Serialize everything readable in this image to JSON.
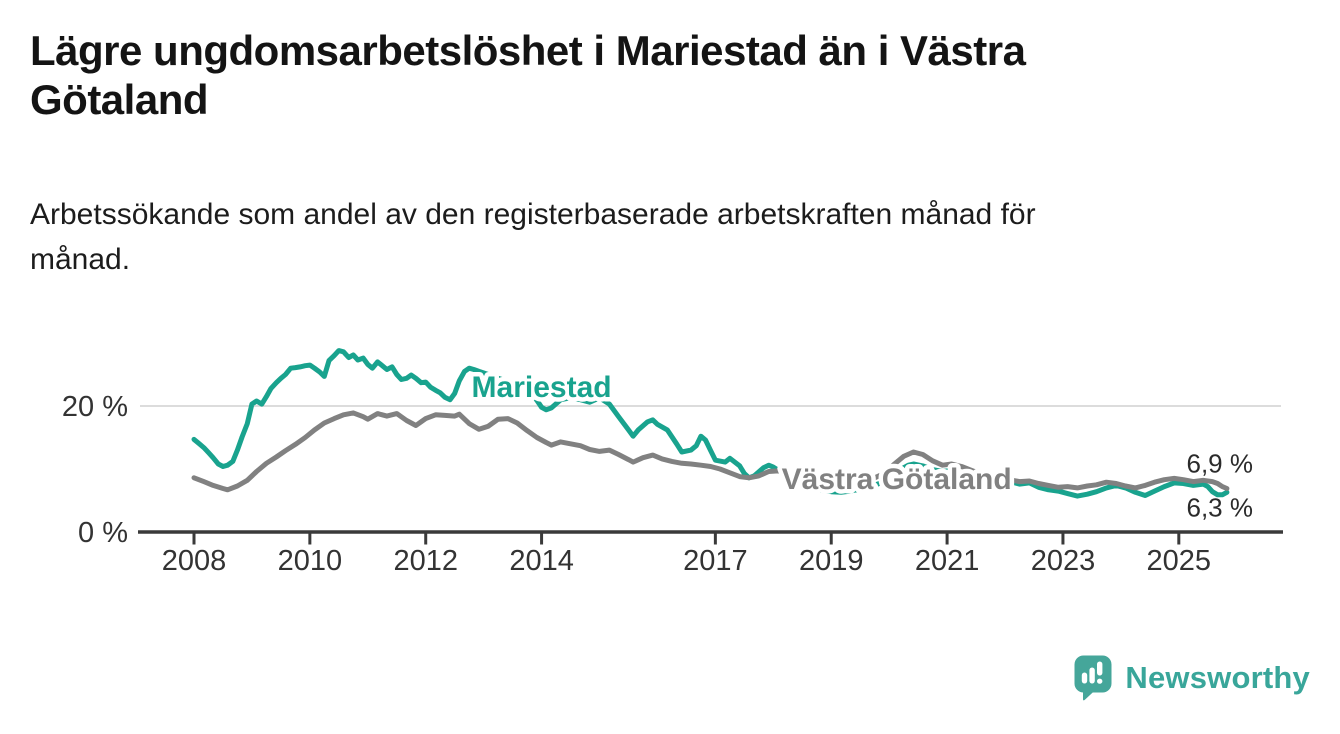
{
  "header": {
    "title_lines": [
      "Lägre ungdomsarbetslöshet i Mariestad än i Västra",
      "Götaland"
    ],
    "subtitle_lines": [
      "Arbetssökande som andel av den registerbaserade arbetskraften månad för",
      "månad."
    ]
  },
  "footer": {
    "brand": "Newsworthy",
    "brand_color": "#39a69a",
    "logo_icon": "speech-bubble-bar-chart-icon"
  },
  "colors": {
    "background": "#ffffff",
    "title_text": "#141414",
    "axis": "#3a3a3a",
    "tick_label": "#333333",
    "grid_line": "#dcdcdc",
    "mariestad_teal": "#19a38e",
    "vastra_gotaland_gray": "#818181",
    "end_label_text": "#2b2b2b"
  },
  "chart_data": {
    "type": "line",
    "title": "Lägre ungdomsarbetslöshet i Mariestad än i Västra Götaland",
    "subtitle": "Arbetssökande som andel av den registerbaserade arbetskraften månad för månad.",
    "x_unit": "year (monthly data)",
    "y_unit": "percent",
    "xlim": [
      2007.9,
      2026.1
    ],
    "ylim": [
      0,
      30.5
    ],
    "grid": "y-only",
    "grid_y_values": [
      20
    ],
    "legend_position": "inline-labels",
    "x_ticks": [
      {
        "value": 2008,
        "label": "2008"
      },
      {
        "value": 2010,
        "label": "2010"
      },
      {
        "value": 2012,
        "label": "2012"
      },
      {
        "value": 2014,
        "label": "2014"
      },
      {
        "value": 2017,
        "label": "2017"
      },
      {
        "value": 2019,
        "label": "2019"
      },
      {
        "value": 2021,
        "label": "2021"
      },
      {
        "value": 2023,
        "label": "2023"
      },
      {
        "value": 2025,
        "label": "2025"
      }
    ],
    "y_ticks": [
      {
        "value": 0,
        "label": "0 %"
      },
      {
        "value": 20,
        "label": "20 %"
      }
    ],
    "series": [
      {
        "name": "Mariestad",
        "color": "#19a38e",
        "final_value_label": "6,3 %",
        "inline_label": {
          "x": 2014.0,
          "y": 23.2
        },
        "points": [
          [
            2008.0,
            14.7
          ],
          [
            2008.08,
            14.1
          ],
          [
            2008.17,
            13.4
          ],
          [
            2008.25,
            12.6
          ],
          [
            2008.33,
            11.8
          ],
          [
            2008.42,
            10.8
          ],
          [
            2008.5,
            10.4
          ],
          [
            2008.58,
            10.6
          ],
          [
            2008.67,
            11.2
          ],
          [
            2008.75,
            13.0
          ],
          [
            2008.83,
            15.1
          ],
          [
            2008.92,
            17.2
          ],
          [
            2009.0,
            20.3
          ],
          [
            2009.08,
            20.8
          ],
          [
            2009.17,
            20.3
          ],
          [
            2009.25,
            21.5
          ],
          [
            2009.33,
            22.8
          ],
          [
            2009.42,
            23.7
          ],
          [
            2009.5,
            24.4
          ],
          [
            2009.58,
            25.0
          ],
          [
            2009.67,
            26.0
          ],
          [
            2009.75,
            26.1
          ],
          [
            2009.83,
            26.2
          ],
          [
            2009.92,
            26.4
          ],
          [
            2010.0,
            26.5
          ],
          [
            2010.08,
            26.0
          ],
          [
            2010.17,
            25.4
          ],
          [
            2010.25,
            24.7
          ],
          [
            2010.33,
            27.2
          ],
          [
            2010.42,
            28.0
          ],
          [
            2010.5,
            28.8
          ],
          [
            2010.58,
            28.6
          ],
          [
            2010.67,
            27.7
          ],
          [
            2010.75,
            28.1
          ],
          [
            2010.83,
            27.3
          ],
          [
            2010.92,
            27.6
          ],
          [
            2011.0,
            26.6
          ],
          [
            2011.08,
            26.0
          ],
          [
            2011.17,
            27.0
          ],
          [
            2011.25,
            26.4
          ],
          [
            2011.33,
            25.8
          ],
          [
            2011.42,
            26.2
          ],
          [
            2011.5,
            25.0
          ],
          [
            2011.58,
            24.2
          ],
          [
            2011.67,
            24.4
          ],
          [
            2011.75,
            24.9
          ],
          [
            2011.83,
            24.4
          ],
          [
            2011.92,
            23.7
          ],
          [
            2012.0,
            23.8
          ],
          [
            2012.08,
            23.0
          ],
          [
            2012.17,
            22.5
          ],
          [
            2012.25,
            22.1
          ],
          [
            2012.33,
            21.4
          ],
          [
            2012.42,
            21.0
          ],
          [
            2012.5,
            22.0
          ],
          [
            2012.58,
            24.0
          ],
          [
            2012.67,
            25.5
          ],
          [
            2012.75,
            26.0
          ],
          [
            2012.83,
            25.8
          ],
          [
            2012.92,
            25.5
          ],
          [
            2013.08,
            25.0
          ],
          [
            2013.25,
            24.4
          ],
          [
            2013.42,
            23.9
          ],
          [
            2013.58,
            23.4
          ],
          [
            2013.75,
            22.6
          ],
          [
            2013.92,
            20.9
          ],
          [
            2014.0,
            19.8
          ],
          [
            2014.08,
            19.4
          ],
          [
            2014.17,
            19.7
          ],
          [
            2014.33,
            21.0
          ],
          [
            2014.5,
            21.3
          ],
          [
            2014.67,
            21.0
          ],
          [
            2014.83,
            20.6
          ],
          [
            2015.0,
            21.3
          ],
          [
            2015.17,
            20.3
          ],
          [
            2015.33,
            18.3
          ],
          [
            2015.5,
            16.2
          ],
          [
            2015.58,
            15.2
          ],
          [
            2015.67,
            16.2
          ],
          [
            2015.83,
            17.5
          ],
          [
            2015.92,
            17.8
          ],
          [
            2016.0,
            17.1
          ],
          [
            2016.17,
            16.2
          ],
          [
            2016.33,
            14.0
          ],
          [
            2016.42,
            12.7
          ],
          [
            2016.58,
            13.0
          ],
          [
            2016.67,
            13.7
          ],
          [
            2016.75,
            15.2
          ],
          [
            2016.83,
            14.6
          ],
          [
            2016.92,
            12.9
          ],
          [
            2017.0,
            11.4
          ],
          [
            2017.17,
            11.1
          ],
          [
            2017.25,
            11.7
          ],
          [
            2017.42,
            10.5
          ],
          [
            2017.5,
            9.3
          ],
          [
            2017.58,
            8.6
          ],
          [
            2017.67,
            8.9
          ],
          [
            2017.83,
            10.2
          ],
          [
            2017.92,
            10.6
          ],
          [
            2018.0,
            10.3
          ],
          [
            2018.17,
            9.3
          ],
          [
            2018.33,
            8.3
          ],
          [
            2018.5,
            7.5
          ],
          [
            2018.67,
            6.9
          ],
          [
            2018.83,
            6.6
          ],
          [
            2019.0,
            6.4
          ],
          [
            2019.17,
            6.3
          ],
          [
            2019.33,
            6.5
          ],
          [
            2019.5,
            6.8
          ],
          [
            2019.67,
            7.2
          ],
          [
            2019.83,
            7.7
          ],
          [
            2020.0,
            8.5
          ],
          [
            2020.17,
            9.8
          ],
          [
            2020.33,
            10.6
          ],
          [
            2020.42,
            10.8
          ],
          [
            2020.58,
            10.5
          ],
          [
            2020.75,
            9.9
          ],
          [
            2020.92,
            9.6
          ],
          [
            2021.08,
            9.8
          ],
          [
            2021.25,
            9.4
          ],
          [
            2021.42,
            9.2
          ],
          [
            2021.58,
            9.0
          ],
          [
            2021.75,
            8.8
          ],
          [
            2021.92,
            8.3
          ],
          [
            2022.08,
            8.0
          ],
          [
            2022.25,
            7.6
          ],
          [
            2022.42,
            7.8
          ],
          [
            2022.58,
            7.1
          ],
          [
            2022.75,
            6.7
          ],
          [
            2022.92,
            6.5
          ],
          [
            2023.08,
            6.1
          ],
          [
            2023.25,
            5.7
          ],
          [
            2023.42,
            6.0
          ],
          [
            2023.58,
            6.4
          ],
          [
            2023.75,
            7.0
          ],
          [
            2023.92,
            7.4
          ],
          [
            2024.08,
            7.0
          ],
          [
            2024.25,
            6.3
          ],
          [
            2024.42,
            5.8
          ],
          [
            2024.58,
            6.5
          ],
          [
            2024.75,
            7.2
          ],
          [
            2024.92,
            7.8
          ],
          [
            2025.08,
            7.7
          ],
          [
            2025.25,
            7.4
          ],
          [
            2025.42,
            7.6
          ],
          [
            2025.5,
            7.2
          ],
          [
            2025.58,
            6.4
          ],
          [
            2025.67,
            5.9
          ],
          [
            2025.75,
            5.9
          ],
          [
            2025.83,
            6.3
          ]
        ]
      },
      {
        "name": "Västra Götaland",
        "color": "#818181",
        "final_value_label": "6,9 %",
        "inline_label": {
          "x": 2020.13,
          "y": 8.6
        },
        "points": [
          [
            2008.0,
            8.6
          ],
          [
            2008.17,
            8.0
          ],
          [
            2008.33,
            7.4
          ],
          [
            2008.5,
            6.9
          ],
          [
            2008.58,
            6.7
          ],
          [
            2008.75,
            7.3
          ],
          [
            2008.92,
            8.2
          ],
          [
            2009.08,
            9.6
          ],
          [
            2009.25,
            10.9
          ],
          [
            2009.42,
            11.9
          ],
          [
            2009.58,
            12.9
          ],
          [
            2009.75,
            13.9
          ],
          [
            2009.92,
            15.0
          ],
          [
            2010.08,
            16.2
          ],
          [
            2010.25,
            17.3
          ],
          [
            2010.42,
            18.0
          ],
          [
            2010.58,
            18.6
          ],
          [
            2010.75,
            18.9
          ],
          [
            2010.92,
            18.3
          ],
          [
            2011.0,
            17.9
          ],
          [
            2011.17,
            18.8
          ],
          [
            2011.33,
            18.4
          ],
          [
            2011.5,
            18.8
          ],
          [
            2011.67,
            17.7
          ],
          [
            2011.83,
            16.9
          ],
          [
            2011.92,
            17.5
          ],
          [
            2012.0,
            18.0
          ],
          [
            2012.17,
            18.6
          ],
          [
            2012.33,
            18.5
          ],
          [
            2012.5,
            18.4
          ],
          [
            2012.58,
            18.7
          ],
          [
            2012.75,
            17.2
          ],
          [
            2012.92,
            16.3
          ],
          [
            2013.08,
            16.8
          ],
          [
            2013.25,
            17.9
          ],
          [
            2013.42,
            18.0
          ],
          [
            2013.58,
            17.3
          ],
          [
            2013.75,
            16.1
          ],
          [
            2013.92,
            15.0
          ],
          [
            2014.08,
            14.2
          ],
          [
            2014.17,
            13.8
          ],
          [
            2014.33,
            14.3
          ],
          [
            2014.5,
            14.0
          ],
          [
            2014.67,
            13.7
          ],
          [
            2014.83,
            13.1
          ],
          [
            2015.0,
            12.8
          ],
          [
            2015.17,
            13.0
          ],
          [
            2015.33,
            12.3
          ],
          [
            2015.5,
            11.5
          ],
          [
            2015.58,
            11.1
          ],
          [
            2015.75,
            11.8
          ],
          [
            2015.92,
            12.2
          ],
          [
            2016.08,
            11.6
          ],
          [
            2016.25,
            11.2
          ],
          [
            2016.42,
            10.9
          ],
          [
            2016.58,
            10.8
          ],
          [
            2016.75,
            10.6
          ],
          [
            2016.92,
            10.4
          ],
          [
            2017.08,
            10.0
          ],
          [
            2017.25,
            9.4
          ],
          [
            2017.42,
            8.8
          ],
          [
            2017.58,
            8.6
          ],
          [
            2017.75,
            8.9
          ],
          [
            2017.92,
            9.6
          ],
          [
            2018.08,
            9.7
          ],
          [
            2018.25,
            9.4
          ],
          [
            2018.42,
            9.1
          ],
          [
            2018.58,
            8.8
          ],
          [
            2018.75,
            8.5
          ],
          [
            2018.92,
            8.3
          ],
          [
            2019.08,
            8.2
          ],
          [
            2019.25,
            8.0
          ],
          [
            2019.42,
            8.0
          ],
          [
            2019.58,
            8.2
          ],
          [
            2019.75,
            8.6
          ],
          [
            2019.92,
            9.3
          ],
          [
            2020.08,
            10.7
          ],
          [
            2020.25,
            12.0
          ],
          [
            2020.42,
            12.7
          ],
          [
            2020.58,
            12.3
          ],
          [
            2020.75,
            11.3
          ],
          [
            2020.92,
            10.6
          ],
          [
            2021.08,
            10.8
          ],
          [
            2021.25,
            10.4
          ],
          [
            2021.42,
            9.8
          ],
          [
            2021.58,
            9.2
          ],
          [
            2021.75,
            8.8
          ],
          [
            2021.92,
            8.6
          ],
          [
            2022.08,
            8.3
          ],
          [
            2022.25,
            8.0
          ],
          [
            2022.42,
            8.1
          ],
          [
            2022.58,
            7.7
          ],
          [
            2022.75,
            7.4
          ],
          [
            2022.92,
            7.1
          ],
          [
            2023.08,
            7.2
          ],
          [
            2023.25,
            7.0
          ],
          [
            2023.42,
            7.3
          ],
          [
            2023.58,
            7.5
          ],
          [
            2023.75,
            7.9
          ],
          [
            2023.92,
            7.7
          ],
          [
            2024.08,
            7.3
          ],
          [
            2024.25,
            7.0
          ],
          [
            2024.42,
            7.4
          ],
          [
            2024.58,
            7.9
          ],
          [
            2024.75,
            8.3
          ],
          [
            2024.92,
            8.5
          ],
          [
            2025.08,
            8.3
          ],
          [
            2025.25,
            8.0
          ],
          [
            2025.42,
            8.2
          ],
          [
            2025.58,
            8.0
          ],
          [
            2025.67,
            7.7
          ],
          [
            2025.75,
            7.2
          ],
          [
            2025.83,
            6.9
          ]
        ]
      }
    ]
  }
}
